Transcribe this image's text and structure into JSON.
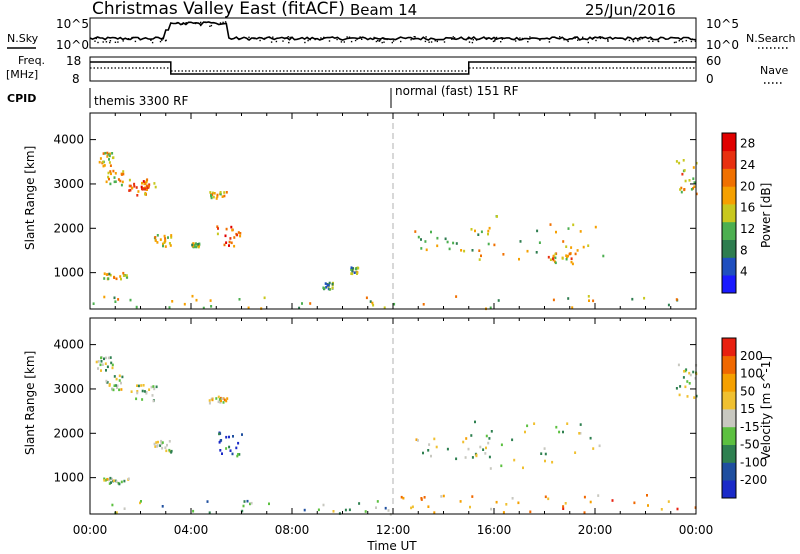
{
  "header": {
    "title": "Christmas Valley East (fitACF)",
    "beam": "Beam 14",
    "date": "25/Jun/2016"
  },
  "left_labels": {
    "nsky": "N.Sky",
    "freq": "Freq.",
    "freq_unit": "[MHz]",
    "cpid": "CPID"
  },
  "right_labels": {
    "nsearch": "N.Search",
    "nave": "Nave"
  },
  "noise_axis": {
    "left_top": "10^5",
    "left_bottom": "10^0",
    "right_top": "10^5",
    "right_bottom": "10^0"
  },
  "freq_axis": {
    "left_top": "18",
    "left_bottom": "8",
    "right_top": "60",
    "right_bottom": "0"
  },
  "cpid": {
    "segment1": "themis 3300 RF",
    "segment2": "normal (fast) 151 RF"
  },
  "panels": {
    "power": {
      "ylabel": "Slant Range [km]",
      "colorbar_label": "Power [dB]"
    },
    "velocity": {
      "ylabel": "Slant Range [km]",
      "colorbar_label": "Velocity [m s^-1]"
    }
  },
  "xaxis_label": "Time UT",
  "colors": {
    "dashed_line": "#b0b0b0"
  },
  "chart_data": [
    {
      "type": "heatmap",
      "name_shown": "",
      "xlabel": "Time UT",
      "ylabel": "Slant Range [km]",
      "x_ticks": [
        "00:00",
        "04:00",
        "08:00",
        "12:00",
        "16:00",
        "20:00",
        "00:00"
      ],
      "xlim_hours": [
        0,
        24
      ],
      "y_ticks": [
        1000,
        2000,
        3000,
        4000
      ],
      "ylim": [
        180,
        4600
      ],
      "colorbar": {
        "label": "Power [dB]",
        "ticks": [
          4,
          8,
          12,
          16,
          20,
          24,
          28
        ],
        "range": [
          0,
          30
        ],
        "colors": [
          "#1a1aff",
          "#1f4fbf",
          "#2e7d4f",
          "#4caf50",
          "#c8c81e",
          "#f5a000",
          "#f07000",
          "#e83010",
          "#e00000"
        ]
      },
      "regions": [
        {
          "t0": 0.2,
          "t1": 0.9,
          "r0": 3400,
          "r1": 3750,
          "level": 0.55
        },
        {
          "t0": 0.6,
          "t1": 1.3,
          "r0": 3000,
          "r1": 3350,
          "level": 0.6
        },
        {
          "t0": 1.5,
          "t1": 2.7,
          "r0": 2750,
          "r1": 3150,
          "level": 0.7
        },
        {
          "t0": 2.0,
          "t1": 2.3,
          "r0": 2900,
          "r1": 3100,
          "level": 0.8
        },
        {
          "t0": 0.5,
          "t1": 1.5,
          "r0": 880,
          "r1": 1020,
          "level": 0.5
        },
        {
          "t0": 2.5,
          "t1": 3.2,
          "r0": 1600,
          "r1": 1880,
          "level": 0.55
        },
        {
          "t0": 5.0,
          "t1": 6.0,
          "r0": 1600,
          "r1": 2100,
          "level": 0.75
        },
        {
          "t0": 4.7,
          "t1": 5.4,
          "r0": 2700,
          "r1": 2850,
          "level": 0.55
        },
        {
          "t0": 4.0,
          "t1": 4.3,
          "r0": 1600,
          "r1": 1700,
          "level": 0.4
        },
        {
          "t0": 9.2,
          "t1": 9.6,
          "r0": 650,
          "r1": 800,
          "level": 0.4
        },
        {
          "t0": 10.3,
          "t1": 10.6,
          "r0": 1000,
          "r1": 1150,
          "level": 0.4
        },
        {
          "t0": 12.7,
          "t1": 15.8,
          "r0": 1450,
          "r1": 2050,
          "level": 0.45
        },
        {
          "t0": 15.0,
          "t1": 20.5,
          "r0": 1200,
          "r1": 2300,
          "level": 0.5
        },
        {
          "t0": 18.0,
          "t1": 19.2,
          "r0": 1250,
          "r1": 1500,
          "level": 0.6
        },
        {
          "t0": 23.2,
          "t1": 24.0,
          "r0": 2800,
          "r1": 3600,
          "level": 0.6
        },
        {
          "t0": 0.0,
          "t1": 24.0,
          "r0": 200,
          "r1": 500,
          "level": 0.5
        }
      ]
    },
    {
      "type": "heatmap",
      "xlabel": "Time UT",
      "ylabel": "Slant Range [km]",
      "x_ticks": [
        "00:00",
        "04:00",
        "08:00",
        "12:00",
        "16:00",
        "20:00",
        "00:00"
      ],
      "xlim_hours": [
        0,
        24
      ],
      "y_ticks": [
        1000,
        2000,
        3000,
        4000
      ],
      "ylim": [
        180,
        4600
      ],
      "colorbar": {
        "label": "Velocity [m s^-1]",
        "ticks": [
          -200,
          -100,
          -50,
          -15,
          15,
          50,
          100,
          200
        ],
        "colors": [
          "#1a2ac8",
          "#1f4f9f",
          "#2e8050",
          "#5cc040",
          "#c8c8c0",
          "#f0c030",
          "#f5a000",
          "#f06800",
          "#e82010"
        ]
      },
      "regions": [
        {
          "t0": 0.2,
          "t1": 0.9,
          "r0": 3400,
          "r1": 3750,
          "level": 0.45
        },
        {
          "t0": 0.6,
          "t1": 1.3,
          "r0": 3000,
          "r1": 3350,
          "level": 0.45
        },
        {
          "t0": 1.5,
          "t1": 2.7,
          "r0": 2750,
          "r1": 3150,
          "level": 0.45
        },
        {
          "t0": 0.5,
          "t1": 1.5,
          "r0": 880,
          "r1": 1020,
          "level": 0.45
        },
        {
          "t0": 2.5,
          "t1": 3.2,
          "r0": 1600,
          "r1": 1880,
          "level": 0.45
        },
        {
          "t0": 5.0,
          "t1": 6.0,
          "r0": 1500,
          "r1": 2100,
          "level": 0.2
        },
        {
          "t0": 4.7,
          "t1": 5.4,
          "r0": 2700,
          "r1": 2850,
          "level": 0.6
        },
        {
          "t0": 12.7,
          "t1": 15.8,
          "r0": 1450,
          "r1": 2050,
          "level": 0.45
        },
        {
          "t0": 15.0,
          "t1": 20.5,
          "r0": 1200,
          "r1": 2300,
          "level": 0.45
        },
        {
          "t0": 23.2,
          "t1": 24.0,
          "r0": 2800,
          "r1": 3600,
          "level": 0.45
        },
        {
          "t0": 0.0,
          "t1": 12.0,
          "r0": 200,
          "r1": 500,
          "level": 0.35
        },
        {
          "t0": 12.0,
          "t1": 24.0,
          "r0": 200,
          "r1": 650,
          "level": 0.68
        }
      ]
    }
  ]
}
